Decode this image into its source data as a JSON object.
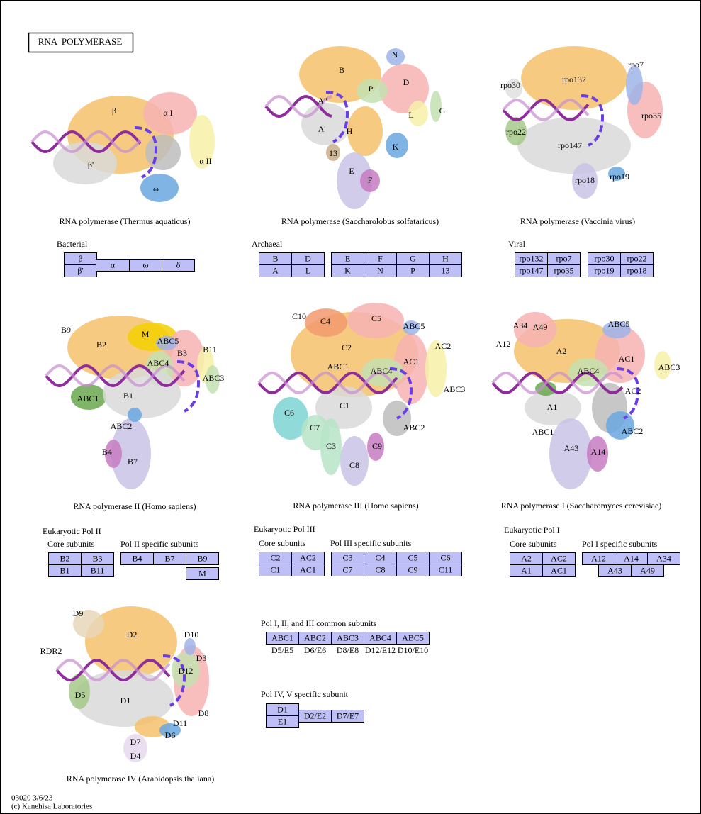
{
  "title": "RNA  POLYMERASE",
  "structures": [
    {
      "caption": "RNA polymerase (Thermus aquaticus)",
      "labels": [
        "β",
        "α I",
        "β'",
        "α II",
        "ω"
      ]
    },
    {
      "caption": "RNA polymerase (Saccharolobus solfataricus)",
      "labels": [
        "B",
        "N",
        "D",
        "P",
        "A\"",
        "L",
        "G",
        "A'",
        "H",
        "K",
        "13",
        "E",
        "F"
      ]
    },
    {
      "caption": "RNA polymerase (Vaccinia virus)",
      "labels": [
        "rpo132",
        "rpo7",
        "rpo30",
        "rpo35",
        "rpo22",
        "rpo147",
        "rpo19",
        "rpo18"
      ]
    },
    {
      "caption": "RNA polymerase II (Homo sapiens)",
      "labels": [
        "B9",
        "M",
        "ABC5",
        "B2",
        "B11",
        "B3",
        "ABC4",
        "ABC3",
        "ABC1",
        "B1",
        "ABC2",
        "B4",
        "B7"
      ]
    },
    {
      "caption": "RNA polymerase III (Homo sapiens)",
      "labels": [
        "C10",
        "C4",
        "C5",
        "ABC5",
        "C2",
        "AC2",
        "ABC1",
        "ABC4",
        "AC1",
        "ABC3",
        "C1",
        "C6",
        "ABC2",
        "C7",
        "C9",
        "C3",
        "C8"
      ]
    },
    {
      "caption": "RNA polymerase I (Saccharomyces cerevisiae)",
      "labels": [
        "A34",
        "A49",
        "ABC5",
        "A12",
        "A2",
        "AC1",
        "ABC3",
        "ABC4",
        "AC2",
        "A1",
        "ABC1",
        "ABC2",
        "A43",
        "A14"
      ]
    },
    {
      "caption": "RNA polymerase IV (Arabidopsis thaliana)",
      "labels": [
        "D9",
        "D2",
        "D10",
        "RDR2",
        "D3",
        "D12",
        "D5",
        "D1",
        "D8",
        "D11",
        "D6",
        "D7",
        "D4"
      ]
    }
  ],
  "groups": [
    {
      "heading": "Bacterial",
      "cells": [
        "β",
        "β'",
        "α",
        "ω",
        "δ"
      ]
    },
    {
      "heading": "Archaeal",
      "cells": [
        "B",
        "D",
        "A",
        "L",
        "E",
        "F",
        "G",
        "H",
        "K",
        "N",
        "P",
        "13"
      ]
    },
    {
      "heading": "Viral",
      "cells": [
        "rpo132",
        "rpo7",
        "rpo147",
        "rpo35",
        "rpo30",
        "rpo22",
        "rpo19",
        "rpo18"
      ]
    },
    {
      "heading": "Eukaryotic Pol II",
      "subheadings": [
        "Core subunits",
        "Pol II specific subunits"
      ],
      "cells": [
        "B2",
        "B3",
        "B1",
        "B11",
        "B4",
        "B7",
        "B9",
        "M"
      ]
    },
    {
      "heading": "Eukaryotic Pol III",
      "subheadings": [
        "Core subunits",
        "Pol III specific subunits"
      ],
      "cells": [
        "C2",
        "AC2",
        "C1",
        "AC1",
        "C3",
        "C4",
        "C5",
        "C6",
        "C7",
        "C8",
        "C9",
        "C11"
      ]
    },
    {
      "heading": "Eukaryotic Pol I",
      "subheadings": [
        "Core subunits",
        "Pol I specific subunits"
      ],
      "cells": [
        "A2",
        "AC2",
        "A1",
        "AC1",
        "A12",
        "A14",
        "A34",
        "A43",
        "A49"
      ]
    },
    {
      "heading": "Pol I, II, and III common subunits",
      "cells": [
        "ABC1",
        "ABC2",
        "ABC3",
        "ABC4",
        "ABC5"
      ],
      "equivalents": [
        "D5/E5",
        "D6/E6",
        "D8/E8",
        "D12/E12",
        "D10/E10"
      ]
    },
    {
      "heading": "Pol IV, V specific subunit",
      "cells": [
        "D1",
        "E1",
        "D2/E2",
        "D7/E7"
      ]
    }
  ],
  "footer": [
    "03020 3/6/23",
    "(c) Kanehisa Laboratories"
  ]
}
